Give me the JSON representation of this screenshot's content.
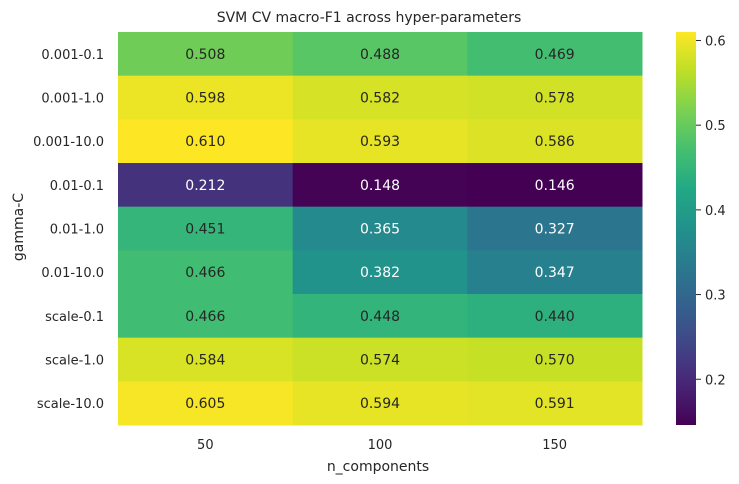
{
  "chart_data": {
    "type": "heatmap",
    "title": "SVM CV macro-F1 across hyper-parameters",
    "xlabel": "n_components",
    "ylabel": "gamma-C",
    "x_categories": [
      "50",
      "100",
      "150"
    ],
    "y_categories": [
      "0.001-0.1",
      "0.001-1.0",
      "0.001-10.0",
      "0.01-0.1",
      "0.01-1.0",
      "0.01-10.0",
      "scale-0.1",
      "scale-1.0",
      "scale-10.0"
    ],
    "values": [
      [
        0.508,
        0.488,
        0.469
      ],
      [
        0.598,
        0.582,
        0.578
      ],
      [
        0.61,
        0.593,
        0.586
      ],
      [
        0.212,
        0.148,
        0.146
      ],
      [
        0.451,
        0.365,
        0.327
      ],
      [
        0.466,
        0.382,
        0.347
      ],
      [
        0.466,
        0.448,
        0.44
      ],
      [
        0.584,
        0.574,
        0.57
      ],
      [
        0.605,
        0.594,
        0.591
      ]
    ],
    "value_labels": [
      [
        "0.508",
        "0.488",
        "0.469"
      ],
      [
        "0.598",
        "0.582",
        "0.578"
      ],
      [
        "0.610",
        "0.593",
        "0.586"
      ],
      [
        "0.212",
        "0.148",
        "0.146"
      ],
      [
        "0.451",
        "0.365",
        "0.327"
      ],
      [
        "0.466",
        "0.382",
        "0.347"
      ],
      [
        "0.466",
        "0.448",
        "0.440"
      ],
      [
        "0.584",
        "0.574",
        "0.570"
      ],
      [
        "0.605",
        "0.594",
        "0.591"
      ]
    ],
    "colormap": "viridis",
    "color_range": [
      0.146,
      0.61
    ],
    "colorbar_ticks": [
      0.2,
      0.3,
      0.4,
      0.5,
      0.6
    ],
    "colorbar_tick_labels": [
      "0.2",
      "0.3",
      "0.4",
      "0.5",
      "0.6"
    ],
    "grid": false,
    "legend": "colorbar-right"
  }
}
